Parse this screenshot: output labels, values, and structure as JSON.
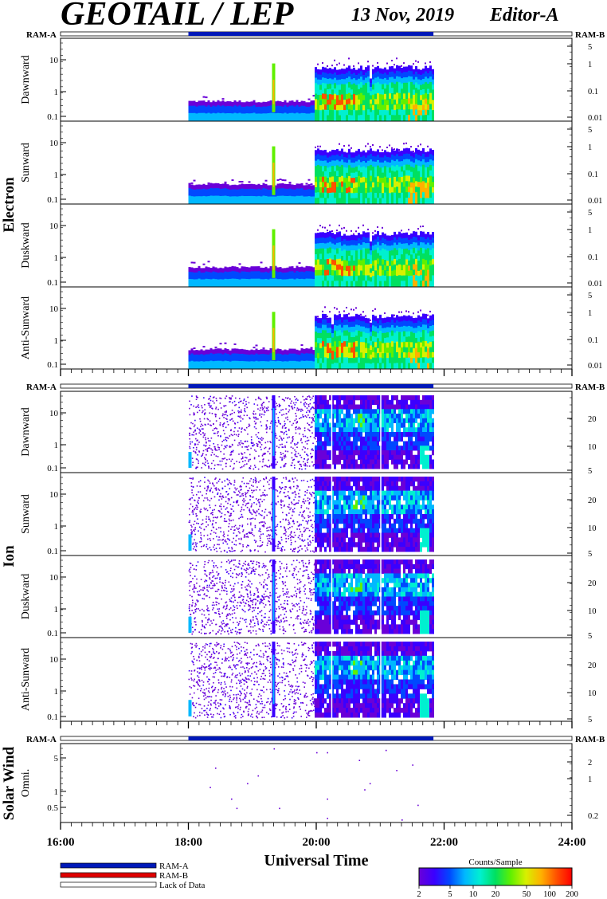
{
  "header": {
    "title": "GEOTAIL / LEP",
    "date": "13 Nov, 2019",
    "editor": "Editor-A"
  },
  "colors": {
    "ram_a": "#0019b8",
    "ram_b": "#e00000",
    "lack_of_data": "#ffffff",
    "colorbar": [
      "#6a00d8",
      "#3a00ff",
      "#0048ff",
      "#00b8ff",
      "#00f0d0",
      "#00e060",
      "#60f000",
      "#d8f000",
      "#ffb000",
      "#ff5000",
      "#ff0000"
    ]
  },
  "chart_data": {
    "type": "heatmap",
    "x_axis": {
      "label": "Universal Time",
      "range": [
        "16:00",
        "24:00"
      ],
      "ticks": [
        "16:00",
        "18:00",
        "20:00",
        "22:00",
        "24:00"
      ],
      "data_start": "18:00",
      "data_end": "21:50"
    },
    "ram_a_interval": [
      "18:00",
      "21:50"
    ],
    "groups": [
      {
        "name": "Electron",
        "kind": "electron",
        "panels": [
          {
            "label": "Dawnward",
            "left_ticks": [
              "10",
              "1",
              "0.1"
            ],
            "right_ticks": [
              "5",
              "1",
              "0.1",
              "0.01"
            ]
          },
          {
            "label": "Sunward",
            "left_ticks": [
              "10",
              "1",
              "0.1"
            ],
            "right_ticks": [
              "5",
              "1",
              "0.1",
              "0.01"
            ]
          },
          {
            "label": "Duskward",
            "left_ticks": [
              "10",
              "1",
              "0.1"
            ],
            "right_ticks": [
              "5",
              "1",
              "0.1",
              "0.01"
            ]
          },
          {
            "label": "Anti-Sunward",
            "left_ticks": [
              "10",
              "1",
              "0.1"
            ],
            "right_ticks": [
              "5",
              "1",
              "0.1",
              "0.01"
            ]
          }
        ]
      },
      {
        "name": "Ion",
        "kind": "ion",
        "panels": [
          {
            "label": "Dawnward",
            "left_ticks": [
              "10",
              "1",
              "0.1"
            ],
            "right_ticks": [
              "20",
              "10",
              "5"
            ]
          },
          {
            "label": "Sunward",
            "left_ticks": [
              "10",
              "1",
              "0.1"
            ],
            "right_ticks": [
              "20",
              "10",
              "5"
            ]
          },
          {
            "label": "Duskward",
            "left_ticks": [
              "10",
              "1",
              "0.1"
            ],
            "right_ticks": [
              "20",
              "10",
              "5"
            ]
          },
          {
            "label": "Anti-Sunward",
            "left_ticks": [
              "10",
              "1",
              "0.1"
            ],
            "right_ticks": [
              "20",
              "10",
              "5"
            ]
          }
        ]
      },
      {
        "name": "Solar Wind",
        "kind": "solarwind",
        "panels": [
          {
            "label": "Omni.",
            "left_ticks": [
              "5",
              "1",
              "0.5"
            ],
            "right_ticks": [
              "2",
              "1",
              "0.2"
            ]
          }
        ]
      }
    ],
    "ram_labels": {
      "left": "RAM-A",
      "right": "RAM-B"
    },
    "legend": [
      {
        "label": "RAM-A"
      },
      {
        "label": "RAM-B"
      },
      {
        "label": "Lack of Data"
      }
    ],
    "colorbar": {
      "title": "Counts/Sample",
      "ticks": [
        "2",
        "5",
        "10",
        "20",
        "50",
        "100",
        "200"
      ]
    }
  }
}
